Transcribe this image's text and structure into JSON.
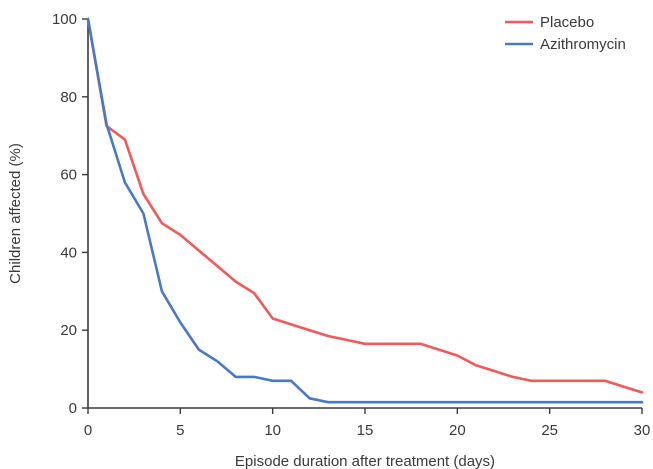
{
  "chart_data": {
    "type": "line",
    "title": "",
    "xlabel": "Episode duration after treatment (days)",
    "ylabel": "Children affected (%)",
    "xlim": [
      0,
      30
    ],
    "ylim": [
      0,
      100
    ],
    "xticks": [
      0,
      5,
      10,
      15,
      20,
      25,
      30
    ],
    "yticks": [
      0,
      20,
      40,
      60,
      80,
      100
    ],
    "grid": false,
    "legend_position": "top-right",
    "series": [
      {
        "name": "Placebo",
        "color": "#f05a5a",
        "points": [
          [
            0,
            100
          ],
          [
            1,
            72.5
          ],
          [
            2,
            69
          ],
          [
            3,
            55
          ],
          [
            4,
            47.5
          ],
          [
            5,
            44.5
          ],
          [
            6,
            40.5
          ],
          [
            7,
            36.5
          ],
          [
            8,
            32.5
          ],
          [
            9,
            29.5
          ],
          [
            10,
            23
          ],
          [
            11,
            21.5
          ],
          [
            12,
            20
          ],
          [
            13,
            18.5
          ],
          [
            14,
            17.5
          ],
          [
            15,
            16.5
          ],
          [
            16,
            16.5
          ],
          [
            17,
            16.5
          ],
          [
            18,
            16.5
          ],
          [
            19,
            15
          ],
          [
            20,
            13.5
          ],
          [
            21,
            11
          ],
          [
            22,
            9.5
          ],
          [
            23,
            8
          ],
          [
            24,
            7
          ],
          [
            25,
            7
          ],
          [
            26,
            7
          ],
          [
            27,
            7
          ],
          [
            28,
            7
          ],
          [
            29,
            5.5
          ],
          [
            30,
            4
          ]
        ]
      },
      {
        "name": "Azithromycin",
        "color": "#4a78c8",
        "points": [
          [
            0,
            100
          ],
          [
            1,
            73
          ],
          [
            2,
            58
          ],
          [
            3,
            50
          ],
          [
            4,
            30
          ],
          [
            5,
            22
          ],
          [
            6,
            15
          ],
          [
            7,
            12
          ],
          [
            8,
            8
          ],
          [
            9,
            8
          ],
          [
            10,
            7
          ],
          [
            11,
            7
          ],
          [
            12,
            2.5
          ],
          [
            13,
            1.5
          ],
          [
            14,
            1.5
          ],
          [
            15,
            1.5
          ],
          [
            16,
            1.5
          ],
          [
            17,
            1.5
          ],
          [
            18,
            1.5
          ],
          [
            19,
            1.5
          ],
          [
            20,
            1.5
          ],
          [
            21,
            1.5
          ],
          [
            22,
            1.5
          ],
          [
            23,
            1.5
          ],
          [
            24,
            1.5
          ],
          [
            25,
            1.5
          ],
          [
            26,
            1.5
          ],
          [
            27,
            1.5
          ],
          [
            28,
            1.5
          ],
          [
            29,
            1.5
          ],
          [
            30,
            1.5
          ]
        ]
      }
    ]
  }
}
